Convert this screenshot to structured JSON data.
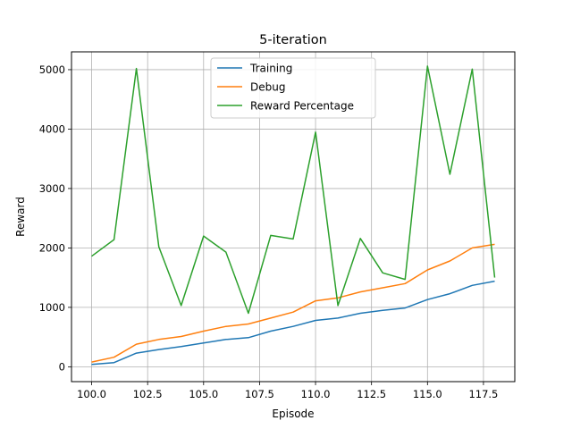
{
  "chart_data": {
    "type": "line",
    "title": "5-iteration",
    "xlabel": "Episode",
    "ylabel": "Reward",
    "xlim": [
      99.1,
      118.9
    ],
    "ylim": [
      -250,
      5300
    ],
    "xticks": [
      100.0,
      102.5,
      105.0,
      107.5,
      110.0,
      112.5,
      115.0,
      117.5
    ],
    "xtick_labels": [
      "100.0",
      "102.5",
      "105.0",
      "107.5",
      "110.0",
      "112.5",
      "115.0",
      "117.5"
    ],
    "yticks": [
      0,
      1000,
      2000,
      3000,
      4000,
      5000
    ],
    "ytick_labels": [
      "0",
      "1000",
      "2000",
      "3000",
      "4000",
      "5000"
    ],
    "grid": true,
    "legend_position": "top-center",
    "x": [
      100,
      101,
      102,
      103,
      104,
      105,
      106,
      107,
      108,
      109,
      110,
      111,
      112,
      113,
      114,
      115,
      116,
      117,
      118
    ],
    "series": [
      {
        "name": "Training",
        "color": "#1f77b4",
        "values": [
          40,
          70,
          230,
          290,
          340,
          400,
          460,
          490,
          600,
          680,
          780,
          820,
          900,
          950,
          990,
          1130,
          1230,
          1370,
          1440
        ]
      },
      {
        "name": "Debug",
        "color": "#ff7f0e",
        "values": [
          80,
          160,
          380,
          460,
          510,
          600,
          680,
          720,
          820,
          920,
          1110,
          1160,
          1260,
          1330,
          1400,
          1630,
          1780,
          2000,
          2060
        ]
      },
      {
        "name": "Reward Percentage",
        "color": "#2ca02c",
        "values": [
          1860,
          2140,
          5020,
          2020,
          1030,
          2200,
          1930,
          900,
          2210,
          2150,
          3950,
          1030,
          2160,
          1580,
          1470,
          5060,
          3240,
          5010,
          1500
        ]
      }
    ]
  }
}
